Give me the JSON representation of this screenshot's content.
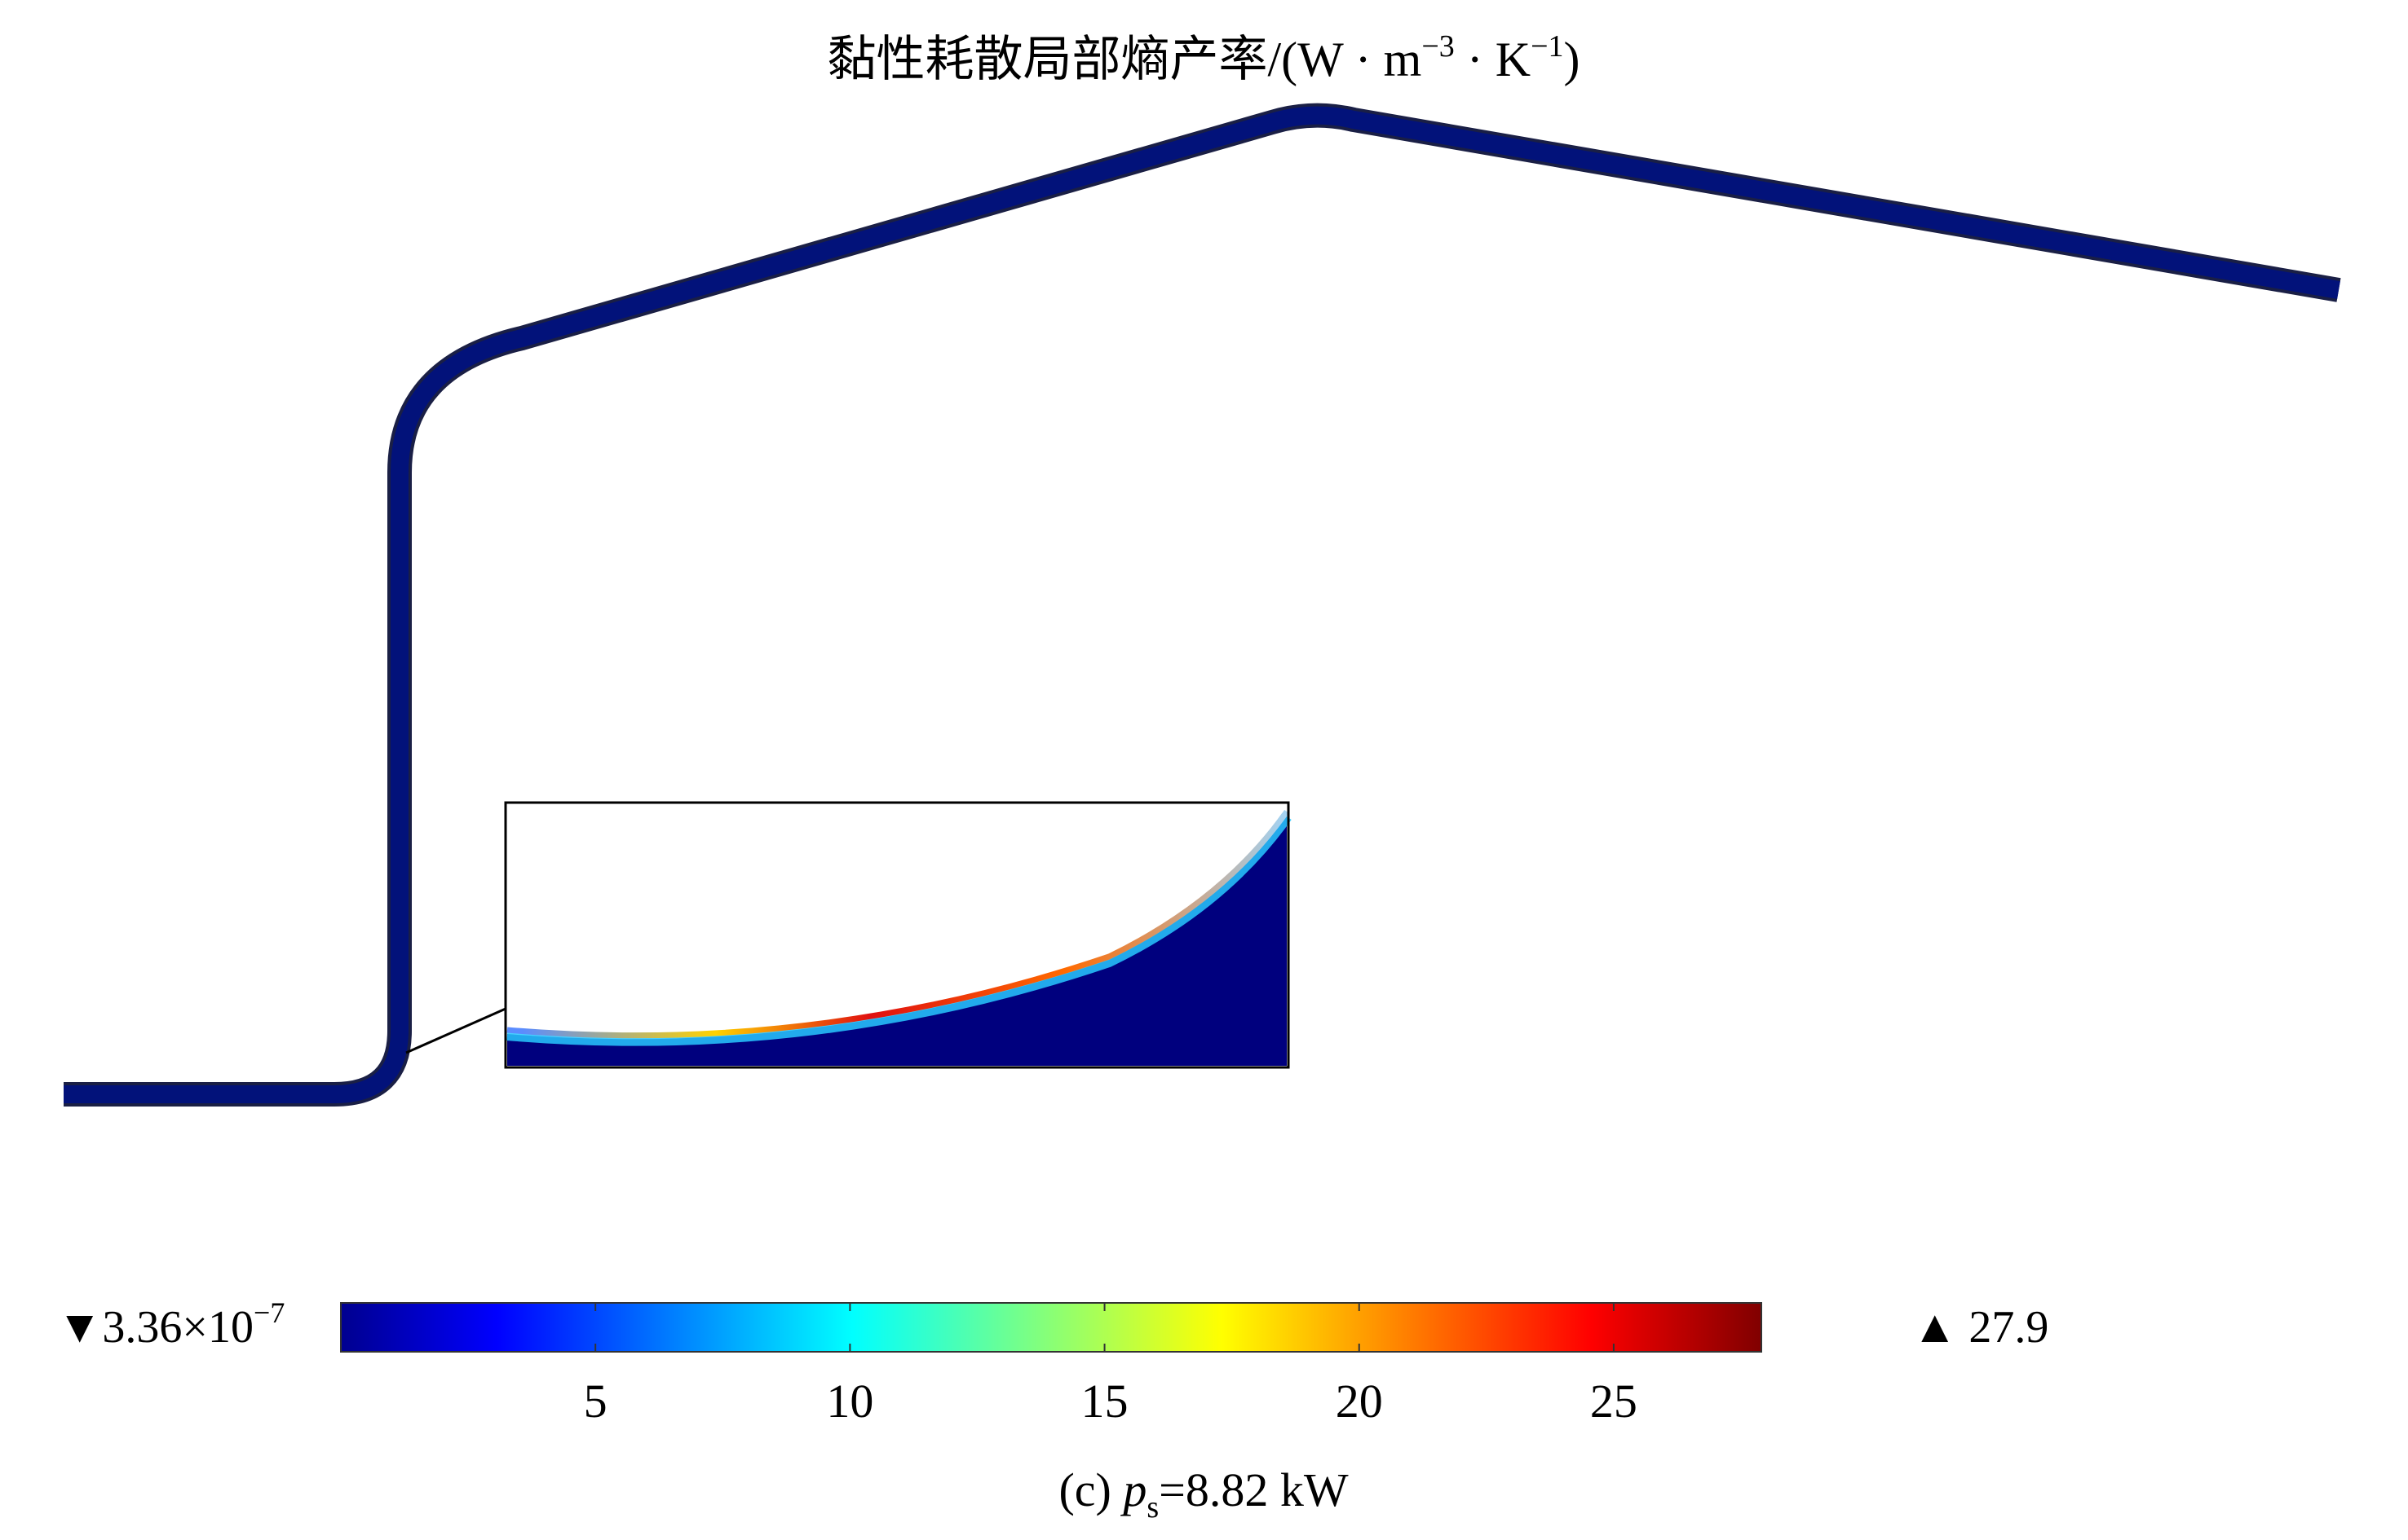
{
  "title": {
    "prefix": "黏性耗散局部熵产率/(W · m",
    "exp1": "−3",
    "mid": " · K",
    "exp2": "−1",
    "suffix": ")"
  },
  "colorbar": {
    "min_label": "▼3.36×10",
    "min_exp": "−7",
    "max_label": "▲ 27.9",
    "min_value": 3.36e-07,
    "max_value": 27.9,
    "ticks": [
      {
        "value": 5,
        "label": "5"
      },
      {
        "value": 10,
        "label": "10"
      },
      {
        "value": 15,
        "label": "15"
      },
      {
        "value": 20,
        "label": "20"
      },
      {
        "value": 25,
        "label": "25"
      }
    ],
    "colormap": [
      "#00008f",
      "#0000ff",
      "#00ffff",
      "#ffff00",
      "#ff0000",
      "#800000"
    ]
  },
  "caption": {
    "prefix": "(c) ",
    "var": "p",
    "sub": "s",
    "suffix": "=8.82 kW"
  },
  "colors": {
    "channel_fill": "#02127a",
    "channel_edge": "#111a55",
    "inset_background": "#00007e"
  }
}
